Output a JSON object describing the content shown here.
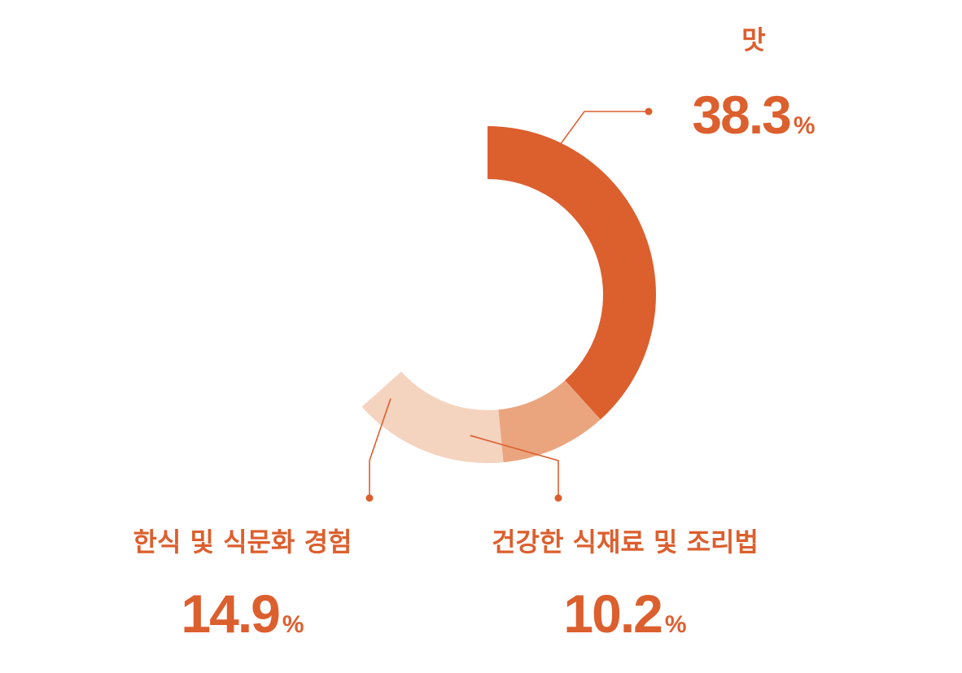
{
  "chart_data": {
    "type": "pie",
    "categories": [
      "맛",
      "건강한 식재료 및 조리법",
      "한식 및 식문화 경험"
    ],
    "values": [
      38.3,
      10.2,
      14.9
    ],
    "value_labels": [
      "38.3",
      "10.2",
      "14.9"
    ],
    "unit": "%",
    "colors": [
      "#dc5f2e",
      "#eaa57f",
      "#f4d3bf"
    ]
  }
}
